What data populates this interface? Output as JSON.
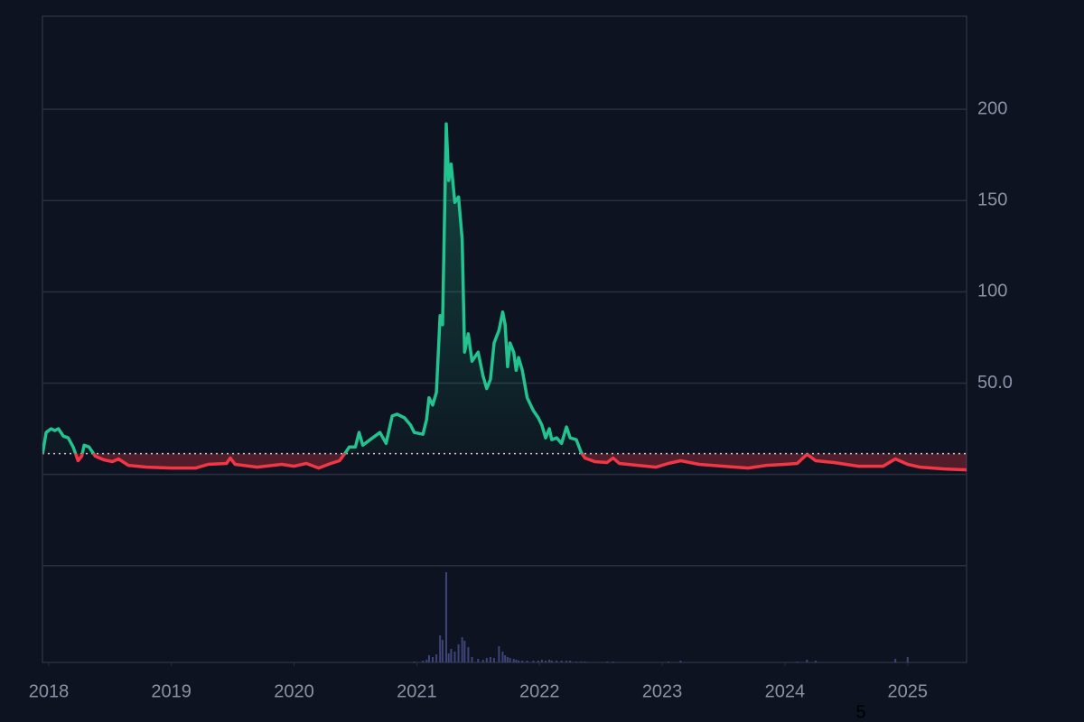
{
  "chart_data": {
    "type": "baseline",
    "x": [
      2017.95,
      2017.98,
      2018.02,
      2018.05,
      2018.08,
      2018.12,
      2018.16,
      2018.2,
      2018.24,
      2018.27,
      2018.29,
      2018.33,
      2018.38,
      2018.45,
      2018.52,
      2018.57,
      2018.65,
      2018.8,
      2019.0,
      2019.2,
      2019.3,
      2019.45,
      2019.48,
      2019.52,
      2019.7,
      2019.9,
      2020.0,
      2020.1,
      2020.2,
      2020.3,
      2020.37,
      2020.42,
      2020.45,
      2020.5,
      2020.53,
      2020.56,
      2020.62,
      2020.7,
      2020.75,
      2020.8,
      2020.84,
      2020.9,
      2020.95,
      2020.98,
      2021.05,
      2021.08,
      2021.1,
      2021.13,
      2021.16,
      2021.19,
      2021.21,
      2021.24,
      2021.26,
      2021.28,
      2021.31,
      2021.34,
      2021.37,
      2021.39,
      2021.42,
      2021.45,
      2021.5,
      2021.54,
      2021.57,
      2021.6,
      2021.63,
      2021.67,
      2021.7,
      2021.72,
      2021.74,
      2021.76,
      2021.79,
      2021.81,
      2021.83,
      2021.86,
      2021.9,
      2021.95,
      2021.99,
      2022.02,
      2022.05,
      2022.08,
      2022.1,
      2022.14,
      2022.18,
      2022.22,
      2022.25,
      2022.3,
      2022.34,
      2022.37,
      2022.45,
      2022.55,
      2022.6,
      2022.65,
      2022.8,
      2022.95,
      2023.05,
      2023.15,
      2023.3,
      2023.5,
      2023.7,
      2023.85,
      2024.0,
      2024.1,
      2024.18,
      2024.25,
      2024.4,
      2024.6,
      2024.8,
      2024.9,
      2025.0,
      2025.1,
      2025.3,
      2025.48
    ],
    "values": [
      11,
      23,
      25,
      24,
      25,
      21,
      20,
      15,
      7.5,
      10,
      16,
      15,
      10,
      8,
      7,
      8.5,
      5,
      4,
      3.5,
      3.5,
      5.5,
      6,
      9,
      5.5,
      4,
      5.5,
      4.5,
      6,
      3.5,
      6,
      7.5,
      12,
      15,
      15,
      23,
      16,
      19,
      23,
      17,
      32,
      33,
      31,
      27,
      23,
      22,
      30,
      42,
      38,
      45,
      87,
      82,
      192,
      161,
      170,
      149,
      152,
      129,
      67,
      77,
      62,
      67,
      54,
      47,
      52,
      72,
      79,
      89,
      82,
      59,
      72,
      67,
      57,
      64,
      57,
      42,
      35,
      31,
      27,
      20,
      25,
      19,
      20,
      17,
      26,
      20,
      19,
      12,
      9,
      7,
      6.5,
      9,
      6,
      5,
      4,
      6,
      7.5,
      5.5,
      4.5,
      3.5,
      5,
      5.5,
      6,
      11,
      7.5,
      6.5,
      4.5,
      4.5,
      8.5,
      5.5,
      4,
      3,
      2.5
    ],
    "volume": [
      0,
      0,
      0,
      0,
      0,
      0,
      0,
      0,
      0,
      0,
      0,
      0,
      0,
      0,
      0,
      0,
      0,
      0,
      0,
      0,
      0,
      0,
      0,
      0,
      0,
      0,
      0,
      0,
      0,
      0,
      0,
      0,
      0,
      0,
      0,
      0,
      0,
      0,
      0,
      0,
      0,
      0,
      0,
      1,
      2,
      3,
      8,
      6,
      9,
      30,
      25,
      100,
      10,
      15,
      12,
      20,
      28,
      24,
      17,
      6,
      4,
      3,
      5,
      6,
      5,
      18,
      12,
      8,
      6,
      5,
      4,
      3,
      2,
      2,
      2,
      2,
      2,
      3,
      2,
      3,
      2,
      2,
      2,
      2,
      2,
      1,
      1,
      1,
      0,
      1,
      1,
      0,
      0,
      0,
      1,
      2,
      0,
      0,
      0,
      0,
      0,
      1,
      3,
      2,
      0,
      0,
      0,
      4,
      6,
      0,
      0,
      0
    ],
    "volume_ylim": [
      0,
      100
    ],
    "baseline": 11.4,
    "up_color": "#22c38e",
    "down_color": "#f23645",
    "volume_color": "#3d4478",
    "xlim": [
      2017.95,
      2025.48
    ],
    "xticks": [
      2018,
      2019,
      2020,
      2021,
      2022,
      2023,
      2024,
      2025
    ],
    "ylim": [
      -103,
      251
    ],
    "yticks": [
      {
        "value": -50,
        "label": null
      },
      {
        "value": 0,
        "label": null
      },
      {
        "value": 50,
        "label": "50.0"
      },
      100,
      150,
      200
    ],
    "grid": true,
    "annotation": "5"
  }
}
